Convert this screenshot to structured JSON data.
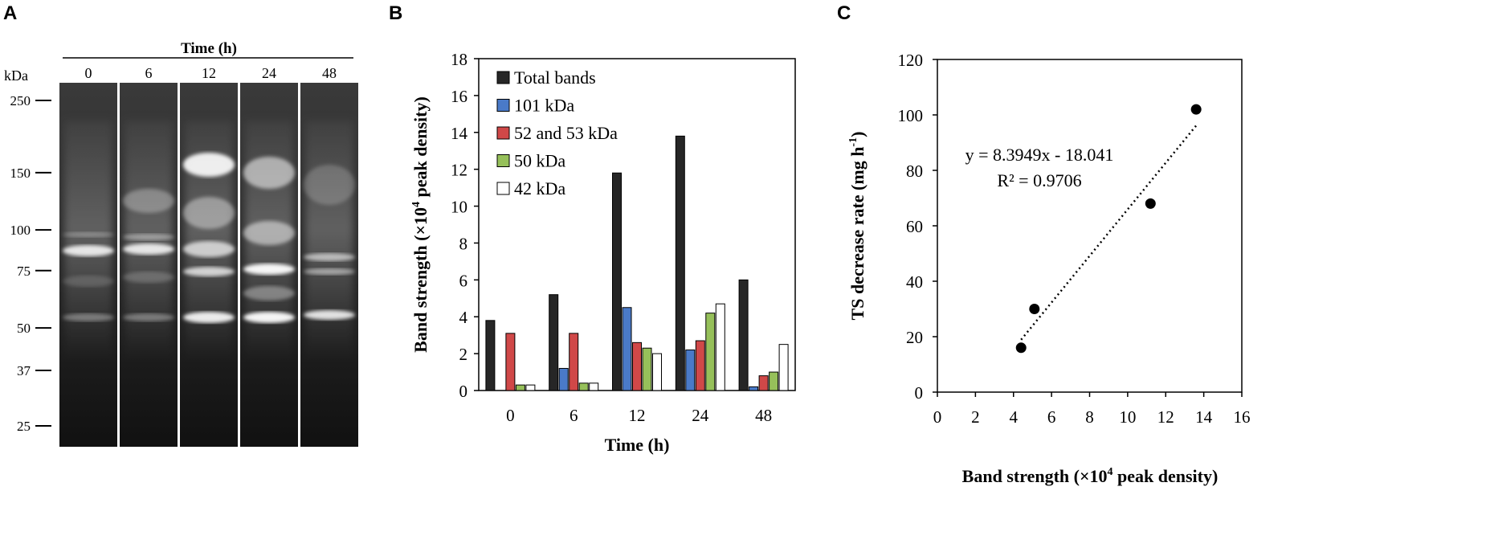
{
  "panels": {
    "a": {
      "letter": "A",
      "header": "Time (h)",
      "unit": "kDa",
      "lanes": [
        "0",
        "6",
        "12",
        "24",
        "48"
      ],
      "markers": [
        "250",
        "150",
        "100",
        "75",
        "50",
        "37",
        "25"
      ],
      "marker_values_kda": [
        250,
        150,
        100,
        75,
        50,
        37,
        25
      ]
    },
    "b": {
      "letter": "B"
    },
    "c": {
      "letter": "C"
    }
  },
  "colors": {
    "total": "#262626",
    "kda101": "#4a7ac8",
    "kda52": "#d04848",
    "kda50": "#96c05a",
    "kda42": "#ffffff"
  },
  "chart_data": [
    {
      "type": "bar",
      "title": "",
      "xlabel": "Time (h)",
      "ylabel_main": "Band strength (×10",
      "ylabel_sup": "4",
      "ylabel_tail": " peak density)",
      "categories": [
        "0",
        "6",
        "12",
        "24",
        "48"
      ],
      "ylim": [
        0,
        18
      ],
      "yticks": [
        "0",
        "2",
        "4",
        "6",
        "8",
        "10",
        "12",
        "14",
        "16",
        "18"
      ],
      "legend_position": "top-left",
      "series": [
        {
          "name": "Total bands",
          "color_key": "total",
          "values": [
            3.8,
            5.2,
            11.8,
            13.8,
            6.0
          ]
        },
        {
          "name": "101 kDa",
          "color_key": "kda101",
          "values": [
            0.0,
            1.2,
            4.5,
            2.2,
            0.2
          ]
        },
        {
          "name": "52 and 53 kDa",
          "color_key": "kda52",
          "values": [
            3.1,
            3.1,
            2.6,
            2.7,
            0.8
          ]
        },
        {
          "name": "50 kDa",
          "color_key": "kda50",
          "values": [
            0.3,
            0.4,
            2.3,
            4.2,
            1.0
          ]
        },
        {
          "name": "42 kDa",
          "color_key": "kda42",
          "values": [
            0.3,
            0.4,
            2.0,
            4.7,
            2.5
          ]
        }
      ]
    },
    {
      "type": "scatter",
      "title": "",
      "xlabel_main": "Band strength (",
      "xlabel_times": "×",
      "xlabel_mid": "10",
      "xlabel_sup": "4",
      "xlabel_tail": " peak density)",
      "ylabel_main": "TS decrease rate (mg h",
      "ylabel_sup": "-1",
      "ylabel_tail": ")",
      "xlim": [
        0,
        16
      ],
      "ylim": [
        0,
        120
      ],
      "xticks": [
        "0",
        "2",
        "4",
        "6",
        "8",
        "10",
        "12",
        "14",
        "16"
      ],
      "yticks": [
        "0",
        "20",
        "40",
        "60",
        "80",
        "100",
        "120"
      ],
      "points": [
        {
          "x": 4.4,
          "y": 16
        },
        {
          "x": 5.1,
          "y": 30
        },
        {
          "x": 11.2,
          "y": 68
        },
        {
          "x": 13.6,
          "y": 102
        }
      ],
      "trendline": {
        "slope": 8.3949,
        "intercept": -18.041,
        "x_range": [
          4.4,
          13.6
        ]
      },
      "equation": "y = 8.3949x - 18.041",
      "r_squared": "R² = 0.9706"
    }
  ]
}
